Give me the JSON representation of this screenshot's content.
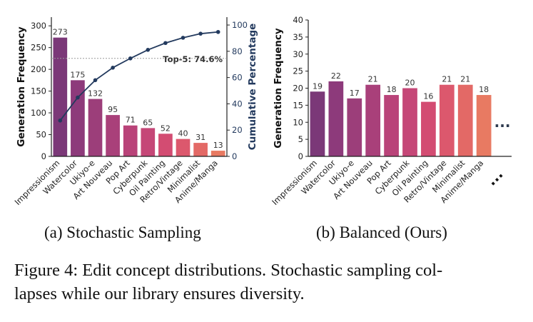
{
  "chart_data": [
    {
      "type": "bar",
      "subcaption": "(a) Stochastic Sampling",
      "categories": [
        "Impressionism",
        "Watercolor",
        "Ukiyo-e",
        "Art Nouveau",
        "Pop Art",
        "Cyberpunk",
        "Oil Painting",
        "Retro/Vintage",
        "Minimalist",
        "Anime/Manga"
      ],
      "values": [
        273,
        175,
        132,
        95,
        71,
        65,
        52,
        40,
        31,
        13
      ],
      "ylabel": "Generation Frequency",
      "ylim": [
        0,
        320
      ],
      "yticks": [
        0,
        50,
        100,
        150,
        200,
        250,
        300
      ],
      "y2label": "Cumulative Percentage",
      "y2lim": [
        0,
        106
      ],
      "y2ticks": [
        0,
        20,
        40,
        60,
        80,
        100
      ],
      "cumulative_percentage": [
        27.3,
        44.8,
        58.0,
        67.5,
        74.6,
        81.1,
        86.3,
        90.3,
        93.4,
        94.7
      ],
      "reference_line": {
        "value": 74.6,
        "label": "Top-5: 74.6%"
      },
      "grid": false
    },
    {
      "type": "bar",
      "subcaption": "(b) Balanced (Ours)",
      "categories": [
        "Impressionism",
        "Watercolor",
        "Ukiyo-e",
        "Art Nouveau",
        "Pop Art",
        "Cyberpunk",
        "Oil Painting",
        "Retro/Vintage",
        "Minimalist",
        "Anime/Manga",
        "..."
      ],
      "values": [
        19,
        22,
        17,
        21,
        18,
        20,
        16,
        21,
        21,
        18,
        null
      ],
      "ylabel": "Generation Frequency",
      "ylim": [
        0,
        40
      ],
      "yticks": [
        0,
        5,
        10,
        15,
        20,
        25,
        30,
        35,
        40
      ],
      "ellipsis": "...",
      "grid": false
    }
  ],
  "colors": {
    "bars": [
      "#7b3878",
      "#8d3a7b",
      "#9c3e7a",
      "#a9407a",
      "#b94379",
      "#c54777",
      "#d34c72",
      "#dc586d",
      "#e36966",
      "#e87a62"
    ],
    "cumulative_line": "#233a5e",
    "axis": "#222222",
    "y2_label": "#233a5e",
    "ellipsis": "#2d3a4e"
  },
  "caption": {
    "line1": "Figure 4: Edit concept distributions. Stochastic sampling col-",
    "line2": "lapses while our library ensures diversity."
  }
}
